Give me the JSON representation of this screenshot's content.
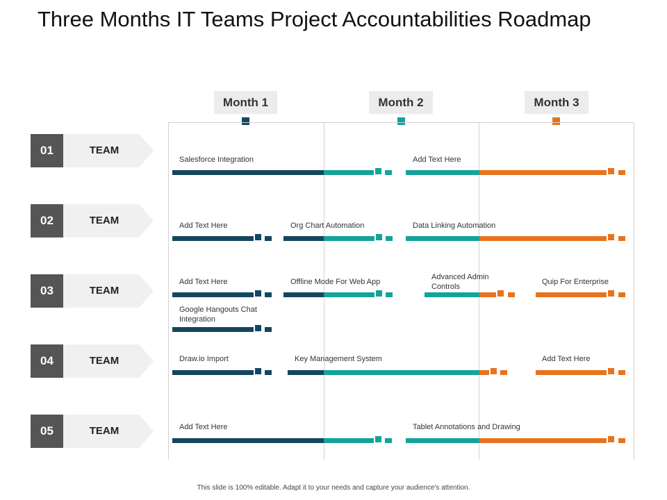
{
  "title": "Three Months IT Teams Project Accountabilities Roadmap",
  "colors": {
    "month1": "#14465f",
    "month2": "#14a39a",
    "month3": "#e8731e",
    "team_box": "#555555"
  },
  "months": [
    {
      "label": "Month 1"
    },
    {
      "label": "Month 2"
    },
    {
      "label": "Month 3"
    }
  ],
  "teams": [
    {
      "number": "01",
      "label": "TEAM"
    },
    {
      "number": "02",
      "label": "TEAM"
    },
    {
      "number": "03",
      "label": "TEAM"
    },
    {
      "number": "04",
      "label": "TEAM"
    },
    {
      "number": "05",
      "label": "TEAM"
    }
  ],
  "tasks": [
    {
      "team": "01",
      "text": "Salesforce Integration"
    },
    {
      "team": "01",
      "text": "Add Text Here"
    },
    {
      "team": "02",
      "text": "Add Text Here"
    },
    {
      "team": "02",
      "text": "Org Chart Automation"
    },
    {
      "team": "02",
      "text": "Data Linking Automation"
    },
    {
      "team": "03",
      "text": "Add Text Here"
    },
    {
      "team": "03",
      "text": "Offline Mode For Web App"
    },
    {
      "team": "03",
      "text": "Advanced Admin Controls"
    },
    {
      "team": "03",
      "text": "Quip For Enterprise"
    },
    {
      "team": "03",
      "text": "Google Hangouts Chat Integration"
    },
    {
      "team": "04",
      "text": "Draw.io Import"
    },
    {
      "team": "04",
      "text": "Key Management System"
    },
    {
      "team": "04",
      "text": "Add Text Here"
    },
    {
      "team": "05",
      "text": "Add Text Here"
    },
    {
      "team": "05",
      "text": "Tablet Annotations and Drawing"
    }
  ],
  "footer": "This slide is 100% editable. Adapt it to your needs and capture your audience's attention."
}
